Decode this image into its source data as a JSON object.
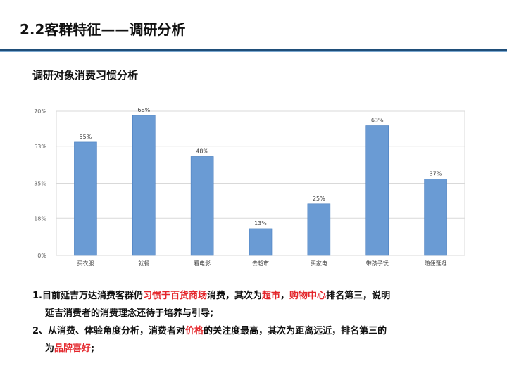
{
  "header": {
    "title": "2.2客群特征——调研分析",
    "subtitle": "调研对象消费习惯分析"
  },
  "chart_data": {
    "type": "bar",
    "categories": [
      "买衣服",
      "就餐",
      "看电影",
      "去超市",
      "买家电",
      "带孩子玩",
      "随便逛逛"
    ],
    "values": [
      55,
      68,
      48,
      13,
      25,
      63,
      37
    ],
    "data_labels": [
      "55%",
      "68%",
      "48%",
      "13%",
      "25%",
      "63%",
      "37%"
    ],
    "ylim": [
      0,
      70
    ],
    "yticks": [
      0,
      18,
      35,
      53,
      70
    ],
    "ytick_labels": [
      "0%",
      "18%",
      "35%",
      "53%",
      "70%"
    ],
    "grid": true,
    "bar_color": "#6a9bd4",
    "title": "",
    "xlabel": "",
    "ylabel": ""
  },
  "notes": {
    "n1": {
      "a": "1.目前延吉万达消费客群仍",
      "b": "习惯于百货商场",
      "c": "消费，其次为",
      "d": "超市",
      "e": "，",
      "f": "购物中心",
      "g": "排名第三，说明",
      "h": "延吉消费者的消费理念还待于培养与引导;"
    },
    "n2": {
      "a": "2、从消费、体验角度分析，消费者对",
      "b": "价格",
      "c": "的关注度最高，其次为距离远近，排名第三的",
      "d": "为",
      "e": "品牌喜好",
      "f": ";"
    }
  },
  "colors": {
    "accent": "#1f4e79",
    "highlight": "#e4262b",
    "bar": "#6a9bd4"
  }
}
